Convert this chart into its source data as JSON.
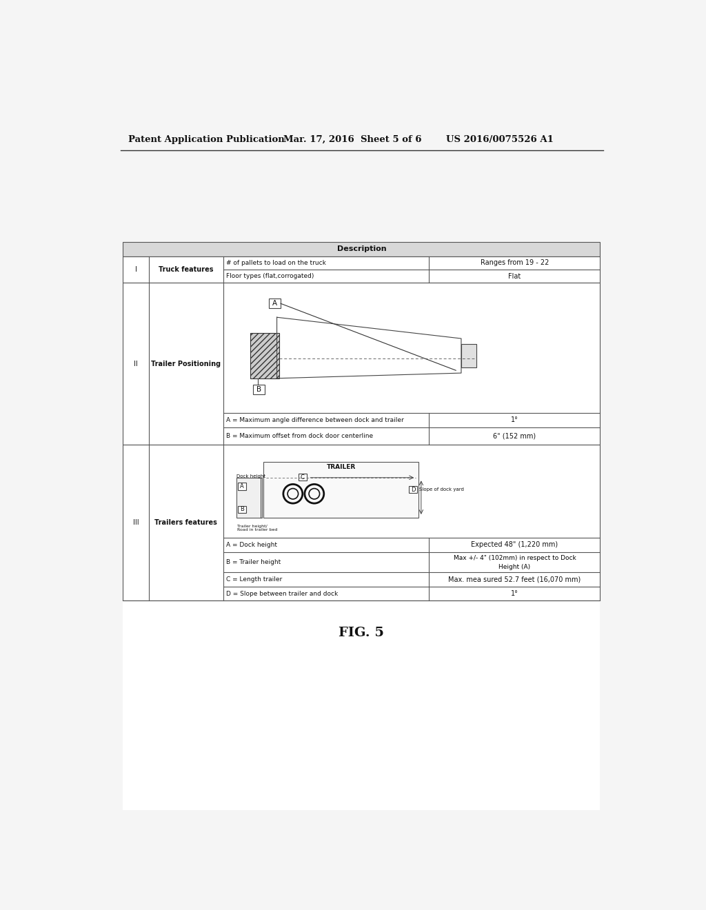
{
  "header_left": "Patent Application Publication",
  "header_mid": "Mar. 17, 2016  Sheet 5 of 6",
  "header_right": "US 2016/0075526 A1",
  "figure_label": "FIG. 5",
  "table_title": "Description",
  "row1_desc1": "# of pallets to load on the truck",
  "row1_val1": "Ranges from 19 - 22",
  "row1_desc2": "Floor types (flat,corrogated)",
  "row1_val2": "Flat",
  "row1_feature": "Truck features",
  "row1_id": "I",
  "row2_id": "II",
  "row2_feature": "Trailer Positioning",
  "row2_label_A": "A = Maximum angle difference between dock and trailer",
  "row2_val_A": "1°",
  "row2_label_B": "B = Maximum offset from dock door centerline",
  "row2_val_B": "6\" (152 mm)",
  "row3_id": "III",
  "row3_feature": "Trailers features",
  "row3_label_A": "A = Dock height",
  "row3_val_A": "Expected 48\" (1,220 mm)",
  "row3_label_B": "B = Trailer height",
  "row3_val_B1": "Max +/- 4\" (102mm) in respect to Dock",
  "row3_val_B2": "Height (A)",
  "row3_label_C": "C = Length trailer",
  "row3_val_C": "Max. mea sured 52.7 feet (16,070 mm)",
  "row3_label_D": "D = Slope between trailer and dock",
  "row3_val_D": "1°",
  "bg_color": "#f5f5f5",
  "table_bg": "#ffffff",
  "header_shade": "#d0d0d0",
  "border_color": "#555555",
  "text_color": "#111111"
}
